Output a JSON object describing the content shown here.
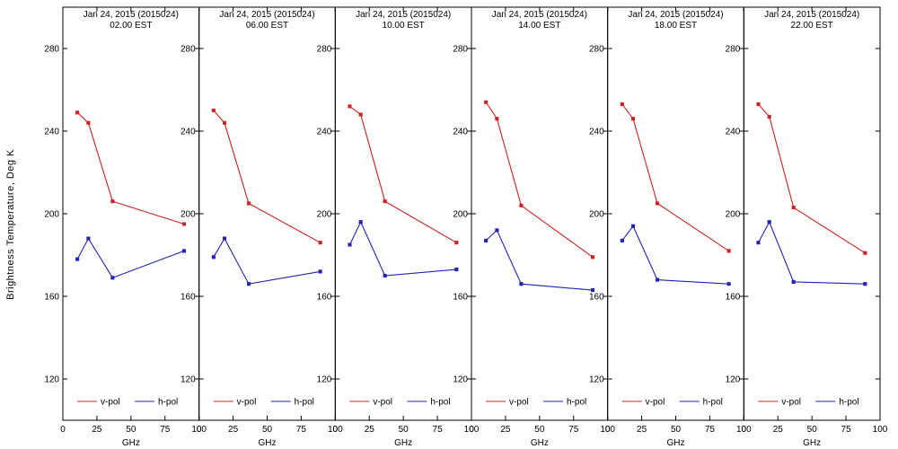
{
  "figure": {
    "background": "#ffffff",
    "axis_color": "#000000",
    "ylabel": "Brightness Temperature, Deg K",
    "vpol_color": "#cc2222",
    "hpol_color": "#2222b4"
  },
  "chart_data": [
    {
      "type": "line",
      "title": "Jan 24, 2015 (2015024)",
      "subtitle": "02.00 EST",
      "xlabel": "GHz",
      "x": [
        10.65,
        18.7,
        36.5,
        89.0
      ],
      "xlim": [
        0,
        100
      ],
      "ylim": [
        100,
        300
      ],
      "xticks": [
        0,
        25,
        50,
        75,
        100
      ],
      "yticks": [
        120,
        160,
        200,
        240,
        280
      ],
      "grid": false,
      "legend_position": "bottom-inside",
      "series": [
        {
          "name": "v-pol",
          "color": "#cc2222",
          "values": [
            249,
            244,
            206,
            195
          ]
        },
        {
          "name": "h-pol",
          "color": "#2222b4",
          "values": [
            178,
            188,
            169,
            182
          ]
        }
      ]
    },
    {
      "type": "line",
      "title": "Jan 24, 2015 (2015024)",
      "subtitle": "06.00 EST",
      "xlabel": "GHz",
      "x": [
        10.65,
        18.7,
        36.5,
        89.0
      ],
      "xlim": [
        0,
        100
      ],
      "ylim": [
        100,
        300
      ],
      "xticks": [
        0,
        25,
        50,
        75,
        100
      ],
      "yticks": [
        120,
        160,
        200,
        240,
        280
      ],
      "grid": false,
      "legend_position": "bottom-inside",
      "series": [
        {
          "name": "v-pol",
          "color": "#cc2222",
          "values": [
            250,
            244,
            205,
            186
          ]
        },
        {
          "name": "h-pol",
          "color": "#2222b4",
          "values": [
            179,
            188,
            166,
            172
          ]
        }
      ]
    },
    {
      "type": "line",
      "title": "Jan 24, 2015 (2015024)",
      "subtitle": "10.00 EST",
      "xlabel": "GHz",
      "x": [
        10.65,
        18.7,
        36.5,
        89.0
      ],
      "xlim": [
        0,
        100
      ],
      "ylim": [
        100,
        300
      ],
      "xticks": [
        0,
        25,
        50,
        75,
        100
      ],
      "yticks": [
        120,
        160,
        200,
        240,
        280
      ],
      "grid": false,
      "legend_position": "bottom-inside",
      "series": [
        {
          "name": "v-pol",
          "color": "#cc2222",
          "values": [
            252,
            248,
            206,
            186
          ]
        },
        {
          "name": "h-pol",
          "color": "#2222b4",
          "values": [
            185,
            196,
            170,
            173
          ]
        }
      ]
    },
    {
      "type": "line",
      "title": "Jan 24, 2015 (2015024)",
      "subtitle": "14.00 EST",
      "xlabel": "GHz",
      "x": [
        10.65,
        18.7,
        36.5,
        89.0
      ],
      "xlim": [
        0,
        100
      ],
      "ylim": [
        100,
        300
      ],
      "xticks": [
        0,
        25,
        50,
        75,
        100
      ],
      "yticks": [
        120,
        160,
        200,
        240,
        280
      ],
      "grid": false,
      "legend_position": "bottom-inside",
      "series": [
        {
          "name": "v-pol",
          "color": "#cc2222",
          "values": [
            254,
            246,
            204,
            179
          ]
        },
        {
          "name": "h-pol",
          "color": "#2222b4",
          "values": [
            187,
            192,
            166,
            163
          ]
        }
      ]
    },
    {
      "type": "line",
      "title": "Jan 24, 2015 (2015024)",
      "subtitle": "18.00 EST",
      "xlabel": "GHz",
      "x": [
        10.65,
        18.7,
        36.5,
        89.0
      ],
      "xlim": [
        0,
        100
      ],
      "ylim": [
        100,
        300
      ],
      "xticks": [
        0,
        25,
        50,
        75,
        100
      ],
      "yticks": [
        120,
        160,
        200,
        240,
        280
      ],
      "grid": false,
      "legend_position": "bottom-inside",
      "series": [
        {
          "name": "v-pol",
          "color": "#cc2222",
          "values": [
            253,
            246,
            205,
            182
          ]
        },
        {
          "name": "h-pol",
          "color": "#2222b4",
          "values": [
            187,
            194,
            168,
            166
          ]
        }
      ]
    },
    {
      "type": "line",
      "title": "Jan 24, 2015 (2015024)",
      "subtitle": "22.00 EST",
      "xlabel": "GHz",
      "x": [
        10.65,
        18.7,
        36.5,
        89.0
      ],
      "xlim": [
        0,
        100
      ],
      "ylim": [
        100,
        300
      ],
      "xticks": [
        0,
        25,
        50,
        75,
        100
      ],
      "yticks": [
        120,
        160,
        200,
        240,
        280
      ],
      "grid": false,
      "legend_position": "bottom-inside",
      "series": [
        {
          "name": "v-pol",
          "color": "#cc2222",
          "values": [
            253,
            247,
            203,
            181
          ]
        },
        {
          "name": "h-pol",
          "color": "#2222b4",
          "values": [
            186,
            196,
            167,
            166
          ]
        }
      ]
    }
  ]
}
